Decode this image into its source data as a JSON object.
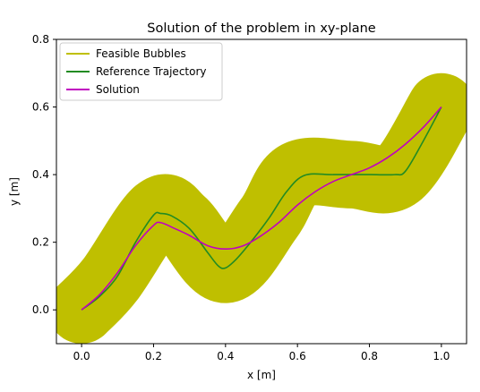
{
  "chart_data": {
    "type": "line",
    "title": "Solution of the problem in xy-plane",
    "xlabel": "x [m]",
    "ylabel": "y [m]",
    "xlim": [
      -0.07,
      1.07
    ],
    "ylim": [
      -0.1,
      0.8
    ],
    "grid": false,
    "legend_position": "top-left",
    "x_ticks": [
      0.0,
      0.2,
      0.4,
      0.6,
      0.8,
      1.0
    ],
    "x_tick_labels": [
      "0.0",
      "0.2",
      "0.4",
      "0.6",
      "0.8",
      "1.0"
    ],
    "y_ticks": [
      0.0,
      0.2,
      0.4,
      0.6,
      0.8
    ],
    "y_tick_labels": [
      "0.0",
      "0.2",
      "0.4",
      "0.6",
      "0.8"
    ],
    "series": [
      {
        "name": "Feasible Bubbles",
        "kind": "region",
        "color": "#bfbf00",
        "centerline": [
          [
            0.0,
            0.0
          ],
          [
            0.08,
            0.09
          ],
          [
            0.21,
            0.29
          ],
          [
            0.28,
            0.26
          ],
          [
            0.4,
            0.12
          ],
          [
            0.52,
            0.27
          ],
          [
            0.6,
            0.4
          ],
          [
            0.75,
            0.4
          ],
          [
            0.88,
            0.4
          ],
          [
            1.0,
            0.6
          ]
        ],
        "radius": 0.1
      },
      {
        "name": "Reference Trajectory",
        "kind": "line",
        "color": "#228b22",
        "points": [
          [
            0.0,
            0.0
          ],
          [
            0.05,
            0.04
          ],
          [
            0.1,
            0.1
          ],
          [
            0.15,
            0.2
          ],
          [
            0.2,
            0.28
          ],
          [
            0.22,
            0.285
          ],
          [
            0.25,
            0.278
          ],
          [
            0.3,
            0.24
          ],
          [
            0.35,
            0.17
          ],
          [
            0.38,
            0.13
          ],
          [
            0.4,
            0.124
          ],
          [
            0.43,
            0.15
          ],
          [
            0.47,
            0.2
          ],
          [
            0.52,
            0.27
          ],
          [
            0.57,
            0.35
          ],
          [
            0.62,
            0.398
          ],
          [
            0.7,
            0.4
          ],
          [
            0.8,
            0.4
          ],
          [
            0.87,
            0.4
          ],
          [
            0.9,
            0.41
          ],
          [
            0.95,
            0.5
          ],
          [
            1.0,
            0.6
          ]
        ]
      },
      {
        "name": "Solution",
        "kind": "line",
        "color": "#c000c0",
        "points": [
          [
            0.0,
            0.0
          ],
          [
            0.05,
            0.045
          ],
          [
            0.1,
            0.11
          ],
          [
            0.15,
            0.19
          ],
          [
            0.2,
            0.25
          ],
          [
            0.22,
            0.258
          ],
          [
            0.26,
            0.24
          ],
          [
            0.3,
            0.22
          ],
          [
            0.35,
            0.19
          ],
          [
            0.4,
            0.18
          ],
          [
            0.45,
            0.19
          ],
          [
            0.5,
            0.22
          ],
          [
            0.55,
            0.26
          ],
          [
            0.6,
            0.31
          ],
          [
            0.65,
            0.35
          ],
          [
            0.7,
            0.38
          ],
          [
            0.75,
            0.4
          ],
          [
            0.8,
            0.42
          ],
          [
            0.85,
            0.45
          ],
          [
            0.9,
            0.49
          ],
          [
            0.95,
            0.54
          ],
          [
            1.0,
            0.6
          ]
        ]
      }
    ]
  }
}
